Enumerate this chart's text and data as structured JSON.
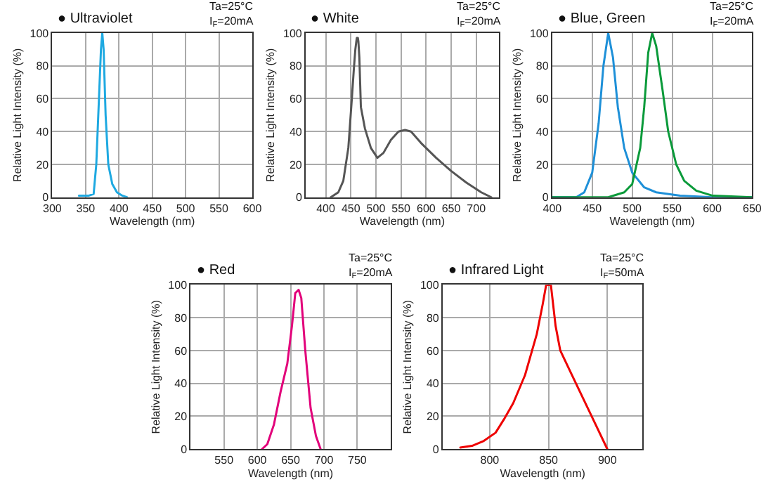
{
  "chart_data": [
    {
      "type": "line",
      "title": "● Ultraviolet",
      "xlabel": "Wavelength (nm)",
      "ylabel": "Relative Light Intensity (%)",
      "annotations": [
        "Ta=25°C\nI$_{F}$=20mA"
      ],
      "xlim": [
        300,
        600
      ],
      "xticks": [
        300,
        350,
        400,
        450,
        500,
        550,
        600
      ],
      "ylim": [
        0,
        100
      ],
      "yticks": [
        0,
        20,
        40,
        60,
        80,
        100
      ],
      "grid": true,
      "series": [
        {
          "color": "#1ea9e1",
          "x": [
            340,
            355,
            362,
            366,
            370,
            373,
            375,
            377,
            380,
            384,
            390,
            397,
            405,
            412
          ],
          "values": [
            1,
            1,
            2,
            20,
            60,
            90,
            100,
            90,
            50,
            20,
            8,
            3,
            1,
            0
          ]
        }
      ]
    },
    {
      "type": "line",
      "title": "● White",
      "xlabel": "Wavelength (nm)",
      "ylabel": "Relative Light Intensity (%)",
      "annotations": [
        "Ta=25°C\nI$_{F}$=20mA"
      ],
      "xlim": [
        360,
        745
      ],
      "xticks": [
        400,
        450,
        500,
        550,
        600,
        650,
        700
      ],
      "ylim": [
        0,
        100
      ],
      "yticks": [
        0,
        20,
        40,
        60,
        80,
        100
      ],
      "grid": true,
      "series": [
        {
          "color": "#555555",
          "x": [
            410,
            425,
            435,
            445,
            452,
            456,
            459,
            461,
            462,
            464,
            465,
            467,
            470,
            478,
            490,
            503,
            515,
            530,
            545,
            558,
            570,
            590,
            620,
            650,
            680,
            710,
            730
          ],
          "values": [
            0,
            3,
            10,
            30,
            60,
            78,
            90,
            95,
            97,
            97,
            95,
            85,
            55,
            42,
            30,
            24,
            27,
            35,
            40,
            41,
            40,
            33,
            24,
            16,
            9,
            3,
            0
          ]
        }
      ]
    },
    {
      "type": "line",
      "title": "● Blue, Green",
      "xlabel": "Wavelength (nm)",
      "ylabel": "Relative Light Intensity (%)",
      "annotations": [
        "Ta=25°C\nI$_{F}$=20mA"
      ],
      "xlim": [
        400,
        650
      ],
      "xticks": [
        400,
        450,
        500,
        550,
        600,
        650
      ],
      "ylim": [
        0,
        100
      ],
      "yticks": [
        0,
        20,
        40,
        60,
        80,
        100
      ],
      "grid": true,
      "series": [
        {
          "color": "#1e90d8",
          "x": [
            400,
            430,
            440,
            450,
            458,
            464,
            470,
            476,
            482,
            490,
            500,
            515,
            530,
            560,
            600,
            650
          ],
          "values": [
            0,
            0,
            3,
            15,
            45,
            80,
            100,
            85,
            55,
            30,
            15,
            6,
            3,
            1,
            0,
            0
          ]
        },
        {
          "color": "#0a9a3a",
          "x": [
            400,
            470,
            490,
            500,
            510,
            515,
            520,
            525,
            530,
            538,
            545,
            555,
            565,
            580,
            600,
            650
          ],
          "values": [
            0,
            0,
            3,
            8,
            30,
            55,
            88,
            100,
            92,
            65,
            40,
            20,
            10,
            4,
            1,
            0
          ]
        }
      ]
    },
    {
      "type": "line",
      "title": "● Red",
      "xlabel": "Wavelength (nm)",
      "ylabel": "Relative Light Intensity (%)",
      "annotations": [
        "Ta=25°C\nI$_{F}$=20mA"
      ],
      "xlim": [
        500,
        800
      ],
      "xticks": [
        550,
        600,
        650,
        700,
        750
      ],
      "ylim": [
        0,
        100
      ],
      "yticks": [
        0,
        20,
        40,
        60,
        80,
        100
      ],
      "grid": true,
      "series": [
        {
          "color": "#e2007a",
          "x": [
            607,
            615,
            625,
            635,
            645,
            652,
            657,
            662,
            666,
            672,
            680,
            688,
            695
          ],
          "values": [
            0,
            3,
            15,
            35,
            52,
            75,
            95,
            97,
            92,
            60,
            25,
            8,
            0
          ]
        }
      ]
    },
    {
      "type": "line",
      "title": "● Infrared Light",
      "xlabel": "Wavelength (nm)",
      "ylabel": "Relative Light Intensity (%)",
      "annotations": [
        "Ta=25°C\nI$_{F}$=50mA"
      ],
      "xlim": [
        760,
        930
      ],
      "xticks": [
        800,
        850,
        900
      ],
      "ylim": [
        0,
        100
      ],
      "yticks": [
        0,
        20,
        40,
        60,
        80,
        100
      ],
      "grid": true,
      "series": [
        {
          "color": "#ee0000",
          "x": [
            775,
            785,
            795,
            805,
            812,
            820,
            830,
            840,
            845,
            848,
            852,
            856,
            860,
            870,
            880,
            890,
            900
          ],
          "values": [
            1,
            2,
            5,
            10,
            18,
            28,
            45,
            70,
            88,
            100,
            100,
            75,
            60,
            45,
            30,
            15,
            0
          ]
        }
      ]
    }
  ]
}
